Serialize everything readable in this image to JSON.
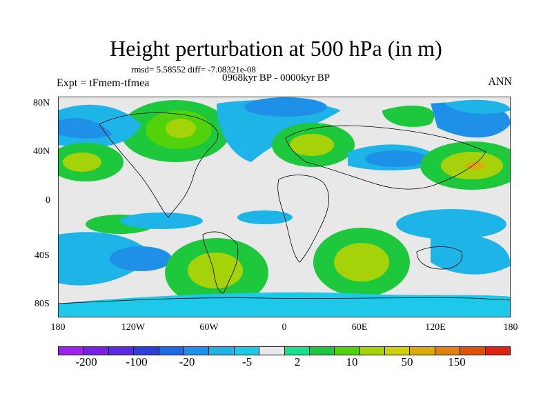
{
  "title": "Height perturbation at 500 hPa (in m)",
  "stats": "rmsd= 5.58552 diff= -7.08321e-08",
  "period": "0968kyr BP - 0000kyr BP",
  "experiment": "Expt = tFmem-tfmea",
  "season": "ANN",
  "axes": {
    "y_ticks": [
      "80N",
      "40N",
      "0",
      "40S",
      "80S"
    ],
    "x_ticks": [
      "180",
      "120W",
      "60W",
      "0",
      "60E",
      "120E",
      "180"
    ]
  },
  "colorbar": {
    "colors": [
      "#a020f0",
      "#7b1fe0",
      "#5a2ae0",
      "#2c3fd6",
      "#1f6ae6",
      "#1e90e8",
      "#1eb4e8",
      "#1ec8e8",
      "#e8e8e8",
      "#18e090",
      "#1ec83c",
      "#52d20a",
      "#a6d20a",
      "#cfcf0a",
      "#dcaa0a",
      "#e0820a",
      "#e0500a",
      "#e02010"
    ],
    "labels": [
      "-200",
      "-100",
      "-20",
      "-5",
      "2",
      "10",
      "50",
      "150"
    ]
  },
  "map_legend_colors": {
    "neutral": "#e8e8e8",
    "light_cyan": "#1ec8e8",
    "cyan": "#1eb4e8",
    "blue": "#1e90e8",
    "deep_blue": "#1f6ae6",
    "teal_green": "#18e090",
    "green": "#1ec83c",
    "yellow_green": "#a6d20a",
    "olive": "#cfcf0a",
    "orange": "#dcaa0a"
  }
}
